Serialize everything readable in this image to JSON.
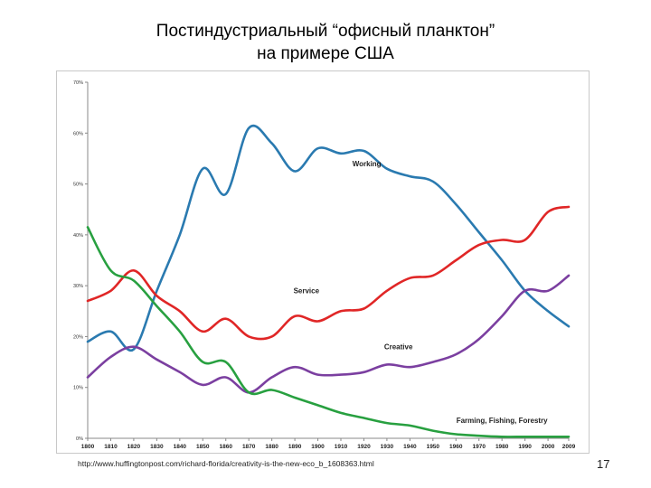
{
  "slide": {
    "title_line1": "Постиндустриальный “офисный планктон”",
    "title_line2": "на примере США",
    "source": "http://www.huffingtonpost.com/richard-florida/creativity-is-the-new-eco_b_1608363.html",
    "page_number": "17"
  },
  "chart_data": {
    "type": "line",
    "x": [
      1800,
      1810,
      1820,
      1830,
      1840,
      1850,
      1860,
      1870,
      1880,
      1890,
      1900,
      1910,
      1920,
      1930,
      1940,
      1950,
      1960,
      1970,
      1980,
      1990,
      2000,
      2009
    ],
    "x_tick_labels": [
      "1800",
      "1810",
      "1820",
      "1830",
      "1840",
      "1850",
      "1860",
      "1870",
      "1880",
      "1890",
      "1900",
      "1910",
      "1920",
      "1930",
      "1940",
      "1950",
      "1960",
      "1970",
      "1980",
      "1990",
      "2000",
      "2009"
    ],
    "y_tick_labels": [
      "0%",
      "10%",
      "20%",
      "30%",
      "40%",
      "50%",
      "60%",
      "70%"
    ],
    "ylim": [
      0,
      70
    ],
    "grid": false,
    "series": [
      {
        "name": "Working",
        "color": "#2a7ab0",
        "values": [
          19,
          21,
          17.5,
          29,
          40,
          53,
          48,
          61,
          58,
          52.5,
          57,
          56,
          56.5,
          53,
          51.5,
          50.5,
          46,
          40.5,
          35,
          29,
          25,
          22
        ]
      },
      {
        "name": "Service",
        "color": "#e02626",
        "values": [
          27,
          29,
          33,
          28,
          25,
          21,
          23.5,
          20,
          20,
          24,
          23,
          25,
          25.5,
          29,
          31.5,
          32,
          35,
          38,
          39,
          39,
          44.5,
          45.5
        ]
      },
      {
        "name": "Creative",
        "color": "#7b3fa0",
        "values": [
          12,
          16,
          18,
          15.5,
          13,
          10.5,
          12,
          9,
          12,
          14,
          12.5,
          12.5,
          13,
          14.5,
          14,
          15,
          16.5,
          19.5,
          24,
          29,
          29,
          32
        ]
      },
      {
        "name": "Farming, Fishing, Forestry",
        "color": "#28a040",
        "values": [
          41.5,
          33,
          31,
          26,
          21,
          15,
          15,
          9,
          9.5,
          8,
          6.5,
          5,
          4,
          3,
          2.5,
          1.5,
          0.8,
          0.5,
          0.3,
          0.3,
          0.3,
          0.3
        ]
      }
    ]
  }
}
